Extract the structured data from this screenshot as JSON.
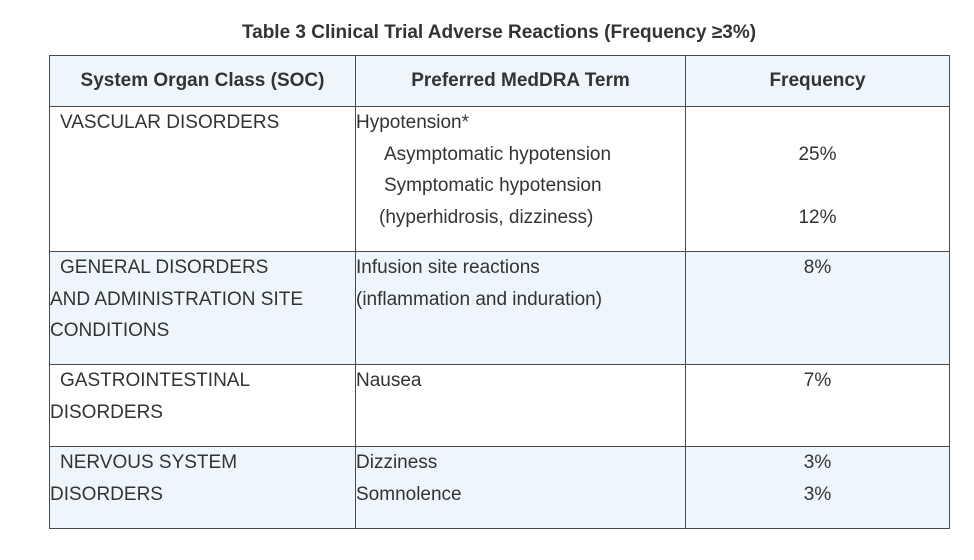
{
  "caption": "Table 3 Clinical Trial Adverse Reactions (Frequency ≥3%)",
  "headers": {
    "soc": "System Organ Class (SOC)",
    "term": "Preferred MedDRA Term",
    "frequency": "Frequency"
  },
  "rows": [
    {
      "soc": [
        "VASCULAR DISORDERS"
      ],
      "terms": [
        "Hypotension*",
        "Asymptomatic hypotension",
        "Symptomatic hypotension",
        "(hyperhidrosis, dizziness)"
      ],
      "frequencies": [
        "",
        "25%",
        "",
        "12%"
      ]
    },
    {
      "soc": [
        "GENERAL DISORDERS",
        "AND ADMINISTRATION SITE",
        "CONDITIONS"
      ],
      "terms": [
        "Infusion site reactions",
        "(inflammation and induration)"
      ],
      "frequencies": [
        "8%"
      ]
    },
    {
      "soc": [
        "GASTROINTESTINAL",
        "DISORDERS"
      ],
      "terms": [
        "Nausea"
      ],
      "frequencies": [
        "7%"
      ]
    },
    {
      "soc": [
        "NERVOUS SYSTEM",
        "DISORDERS"
      ],
      "terms": [
        "Dizziness",
        "Somnolence"
      ],
      "frequencies": [
        "3%",
        "3%"
      ]
    }
  ]
}
